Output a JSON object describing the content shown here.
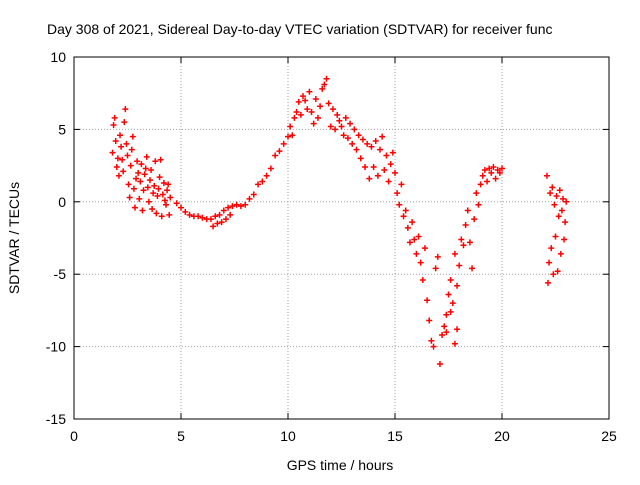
{
  "chart_data": {
    "type": "scatter",
    "title": "Day 308 of 2021, Sidereal Day-to-day VTEC variation (SDTVAR) for receiver func",
    "xlabel": "GPS time / hours",
    "ylabel": "SDTVAR / TECUs",
    "xlim": [
      0,
      25
    ],
    "ylim": [
      -15,
      10
    ],
    "xticks": [
      0,
      5,
      10,
      15,
      20,
      25
    ],
    "yticks": [
      -15,
      -10,
      -5,
      0,
      5,
      10
    ],
    "grid": true,
    "marker": "+",
    "series": [
      {
        "name": "SDTVAR",
        "color": "#ff0000",
        "points": [
          [
            1.8,
            3.4
          ],
          [
            1.85,
            5.3
          ],
          [
            1.9,
            5.8
          ],
          [
            1.95,
            4.2
          ],
          [
            2.0,
            2.4
          ],
          [
            2.05,
            3.0
          ],
          [
            2.1,
            1.8
          ],
          [
            2.15,
            4.6
          ],
          [
            2.2,
            3.8
          ],
          [
            2.25,
            2.9
          ],
          [
            2.3,
            2.1
          ],
          [
            2.35,
            5.5
          ],
          [
            2.4,
            6.4
          ],
          [
            2.45,
            4.0
          ],
          [
            2.5,
            3.2
          ],
          [
            2.55,
            1.2
          ],
          [
            2.6,
            0.3
          ],
          [
            2.65,
            2.5
          ],
          [
            2.7,
            3.6
          ],
          [
            2.75,
            4.5
          ],
          [
            2.8,
            0.9
          ],
          [
            2.85,
            -0.4
          ],
          [
            2.9,
            1.6
          ],
          [
            2.95,
            2.8
          ],
          [
            3.0,
            2.0
          ],
          [
            3.05,
            0.2
          ],
          [
            3.1,
            1.4
          ],
          [
            3.15,
            2.6
          ],
          [
            3.2,
            -0.6
          ],
          [
            3.25,
            0.8
          ],
          [
            3.3,
            1.9
          ],
          [
            3.35,
            2.3
          ],
          [
            3.4,
            3.1
          ],
          [
            3.45,
            1.0
          ],
          [
            3.5,
            0.0
          ],
          [
            3.55,
            1.5
          ],
          [
            3.6,
            2.2
          ],
          [
            3.65,
            -0.5
          ],
          [
            3.7,
            0.6
          ],
          [
            3.75,
            1.1
          ],
          [
            3.8,
            2.8
          ],
          [
            3.85,
            -0.8
          ],
          [
            3.9,
            0.4
          ],
          [
            3.95,
            0.9
          ],
          [
            4.0,
            1.7
          ],
          [
            4.05,
            2.9
          ],
          [
            4.1,
            -1.0
          ],
          [
            4.15,
            0.5
          ],
          [
            4.2,
            1.3
          ],
          [
            4.25,
            0.1
          ],
          [
            4.3,
            -0.2
          ],
          [
            4.35,
            0.8
          ],
          [
            4.4,
            1.2
          ],
          [
            4.45,
            -0.9
          ],
          [
            4.5,
            0.3
          ],
          [
            4.8,
            -0.1
          ],
          [
            5.0,
            -0.4
          ],
          [
            5.2,
            -0.7
          ],
          [
            5.4,
            -0.9
          ],
          [
            5.6,
            -1.0
          ],
          [
            5.8,
            -1.0
          ],
          [
            6.0,
            -1.1
          ],
          [
            6.2,
            -1.2
          ],
          [
            6.4,
            -1.2
          ],
          [
            6.5,
            -1.7
          ],
          [
            6.6,
            -1.0
          ],
          [
            6.7,
            -1.5
          ],
          [
            6.8,
            -0.9
          ],
          [
            6.9,
            -1.4
          ],
          [
            7.0,
            -0.6
          ],
          [
            7.1,
            -1.2
          ],
          [
            7.2,
            -0.4
          ],
          [
            7.3,
            -0.9
          ],
          [
            7.4,
            -0.3
          ],
          [
            7.6,
            -0.2
          ],
          [
            7.8,
            -0.3
          ],
          [
            8.0,
            -0.2
          ],
          [
            8.2,
            0.2
          ],
          [
            8.4,
            0.5
          ],
          [
            8.6,
            1.2
          ],
          [
            8.8,
            1.4
          ],
          [
            9.0,
            1.8
          ],
          [
            9.2,
            2.3
          ],
          [
            9.4,
            3.2
          ],
          [
            9.6,
            3.5
          ],
          [
            9.8,
            4.0
          ],
          [
            10.0,
            4.5
          ],
          [
            10.1,
            5.2
          ],
          [
            10.2,
            4.6
          ],
          [
            10.3,
            5.8
          ],
          [
            10.4,
            6.2
          ],
          [
            10.5,
            6.9
          ],
          [
            10.6,
            6.0
          ],
          [
            10.7,
            7.3
          ],
          [
            10.8,
            7.0
          ],
          [
            10.9,
            6.4
          ],
          [
            11.0,
            7.6
          ],
          [
            11.1,
            6.2
          ],
          [
            11.2,
            5.4
          ],
          [
            11.3,
            7.1
          ],
          [
            11.4,
            5.8
          ],
          [
            11.5,
            6.6
          ],
          [
            11.6,
            7.8
          ],
          [
            11.7,
            8.1
          ],
          [
            11.8,
            8.5
          ],
          [
            11.9,
            6.8
          ],
          [
            12.0,
            5.2
          ],
          [
            12.1,
            6.4
          ],
          [
            12.2,
            5.0
          ],
          [
            12.3,
            6.0
          ],
          [
            12.4,
            5.6
          ],
          [
            12.5,
            5.2
          ],
          [
            12.6,
            4.6
          ],
          [
            12.7,
            5.8
          ],
          [
            12.8,
            4.4
          ],
          [
            12.9,
            5.4
          ],
          [
            13.0,
            4.0
          ],
          [
            13.1,
            5.0
          ],
          [
            13.2,
            3.6
          ],
          [
            13.3,
            4.6
          ],
          [
            13.4,
            3.0
          ],
          [
            13.5,
            4.3
          ],
          [
            13.6,
            2.4
          ],
          [
            13.7,
            4.0
          ],
          [
            13.8,
            1.6
          ],
          [
            13.9,
            3.8
          ],
          [
            14.0,
            2.4
          ],
          [
            14.1,
            4.2
          ],
          [
            14.2,
            1.8
          ],
          [
            14.3,
            3.6
          ],
          [
            14.4,
            4.5
          ],
          [
            14.5,
            2.2
          ],
          [
            14.6,
            3.2
          ],
          [
            14.7,
            1.4
          ],
          [
            14.8,
            2.6
          ],
          [
            14.9,
            3.4
          ],
          [
            15.0,
            2.0
          ],
          [
            15.1,
            0.6
          ],
          [
            15.2,
            -0.2
          ],
          [
            15.3,
            1.2
          ],
          [
            15.4,
            -1.0
          ],
          [
            15.5,
            -0.6
          ],
          [
            15.6,
            -1.8
          ],
          [
            15.7,
            -2.8
          ],
          [
            15.8,
            -1.4
          ],
          [
            15.9,
            -2.6
          ],
          [
            16.0,
            -3.6
          ],
          [
            16.1,
            -2.4
          ],
          [
            16.2,
            -4.2
          ],
          [
            16.3,
            -5.4
          ],
          [
            16.4,
            -3.2
          ],
          [
            16.5,
            -6.8
          ],
          [
            16.6,
            -8.2
          ],
          [
            16.7,
            -9.6
          ],
          [
            16.8,
            -10.0
          ],
          [
            16.9,
            -4.6
          ],
          [
            17.0,
            -3.8
          ],
          [
            17.1,
            -11.2
          ],
          [
            17.2,
            -9.2
          ],
          [
            17.3,
            -8.6
          ],
          [
            17.4,
            -7.8
          ],
          [
            17.5,
            -6.4
          ],
          [
            17.6,
            -5.4
          ],
          [
            17.7,
            -7.0
          ],
          [
            17.8,
            -3.6
          ],
          [
            17.9,
            -5.8
          ],
          [
            18.0,
            -4.4
          ],
          [
            18.1,
            -2.6
          ],
          [
            18.2,
            -3.0
          ],
          [
            18.3,
            -1.6
          ],
          [
            18.4,
            -0.6
          ],
          [
            18.5,
            -2.8
          ],
          [
            18.6,
            -4.6
          ],
          [
            18.7,
            -1.2
          ],
          [
            18.8,
            0.6
          ],
          [
            18.9,
            -0.2
          ],
          [
            19.0,
            1.2
          ],
          [
            19.1,
            1.8
          ],
          [
            19.2,
            2.2
          ],
          [
            19.3,
            1.4
          ],
          [
            19.4,
            2.3
          ],
          [
            19.5,
            2.0
          ],
          [
            19.6,
            2.4
          ],
          [
            19.7,
            1.6
          ],
          [
            19.8,
            2.2
          ],
          [
            19.9,
            2.0
          ],
          [
            20.0,
            2.3
          ],
          [
            17.8,
            -9.8
          ],
          [
            17.9,
            -8.8
          ],
          [
            17.6,
            -7.6
          ],
          [
            17.4,
            -9.0
          ],
          [
            22.1,
            1.8
          ],
          [
            22.15,
            -5.6
          ],
          [
            22.2,
            -4.2
          ],
          [
            22.25,
            0.6
          ],
          [
            22.3,
            -3.2
          ],
          [
            22.35,
            1.0
          ],
          [
            22.4,
            -5.0
          ],
          [
            22.45,
            -0.2
          ],
          [
            22.5,
            -2.4
          ],
          [
            22.55,
            0.4
          ],
          [
            22.6,
            -4.8
          ],
          [
            22.65,
            -1.0
          ],
          [
            22.7,
            0.8
          ],
          [
            22.75,
            -3.6
          ],
          [
            22.8,
            -0.6
          ],
          [
            22.85,
            0.2
          ],
          [
            22.9,
            -2.6
          ],
          [
            22.95,
            -1.4
          ],
          [
            23.0,
            0.0
          ]
        ]
      }
    ]
  }
}
